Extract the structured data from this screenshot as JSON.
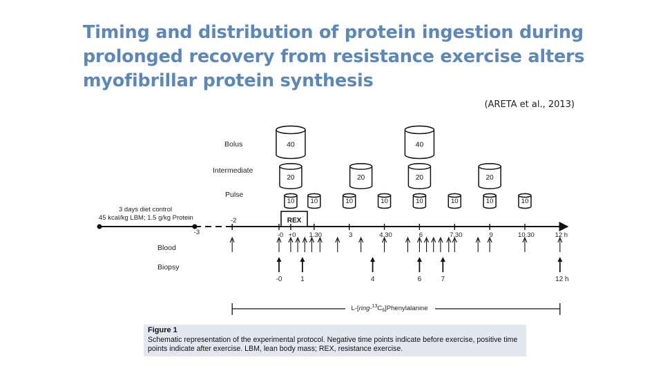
{
  "slide": {
    "title_lines": [
      "Timing and distribution of protein ingestion during",
      "prolonged recovery from resistance exercise alters",
      "myofibrillar protein synthesis"
    ],
    "citation": "(ARETA et al., 2013)"
  },
  "figure": {
    "row_labels": {
      "bolus": "Bolus",
      "intermediate": "Intermediate",
      "pulse": "Pulse",
      "blood": "Blood",
      "biopsy": "Biopsy"
    },
    "diet_control": {
      "line1": "3 days diet control",
      "line2": "45 kcal/kg LBM; 1.5 g/kg Protein"
    },
    "rex_label": "REX",
    "bolus_doses": [
      {
        "time": 0.5,
        "label": "40"
      },
      {
        "time": 6,
        "label": "40"
      }
    ],
    "intermediate_doses": [
      {
        "time": 0.5,
        "label": "20"
      },
      {
        "time": 3.5,
        "label": "20"
      },
      {
        "time": 6,
        "label": "20"
      },
      {
        "time": 9,
        "label": "20"
      }
    ],
    "pulse_doses": [
      {
        "time": 0.5,
        "label": "10"
      },
      {
        "time": 1.5,
        "label": "10"
      },
      {
        "time": 3,
        "label": "10"
      },
      {
        "time": 4.5,
        "label": "10"
      },
      {
        "time": 6,
        "label": "10"
      },
      {
        "time": 7.5,
        "label": "10"
      },
      {
        "time": 9,
        "label": "10"
      },
      {
        "time": 10.5,
        "label": "10"
      }
    ],
    "timeline_ticks": [
      {
        "time": -3,
        "label": "-3"
      },
      {
        "time": -2,
        "label": "-2"
      },
      {
        "time": 0,
        "label": "-0"
      },
      {
        "time": 0.5,
        "label": "+0"
      },
      {
        "time": 1.5,
        "label": "1.30"
      },
      {
        "time": 3,
        "label": "3"
      },
      {
        "time": 4.5,
        "label": "4.30"
      },
      {
        "time": 6,
        "label": "6"
      },
      {
        "time": 7.5,
        "label": "7.30"
      },
      {
        "time": 9,
        "label": "9"
      },
      {
        "time": 10.5,
        "label": "10.30"
      },
      {
        "time": 12,
        "label": "12 h"
      }
    ],
    "blood_samples": [
      -2,
      0,
      0.5,
      0.8,
      1.1,
      1.4,
      1.75,
      2.5,
      3.5,
      4.5,
      5.5,
      6,
      6.3,
      6.6,
      6.9,
      7.25,
      7.5,
      8.5,
      9,
      10.5,
      12
    ],
    "biopsy_samples": [
      {
        "time": 0,
        "label": "-0"
      },
      {
        "time": 1,
        "label": "1"
      },
      {
        "time": 4,
        "label": "4"
      },
      {
        "time": 6,
        "label": "6"
      },
      {
        "time": 7,
        "label": "7"
      },
      {
        "time": 12,
        "label": "12 h"
      }
    ],
    "tracer_label_prefix": "L-[",
    "tracer_label_italic": "ring",
    "tracer_label_mid": "-",
    "tracer_label_sup": "13",
    "tracer_label_c": "C",
    "tracer_label_sub": "6",
    "tracer_label_suffix": "]Phenylalanine",
    "tracer_range": [
      -2,
      12
    ],
    "caption_title": "Figure 1",
    "caption_text": "Schematic representation of the experimental protocol. Negative time points indicate before exercise, positive time points indicate after exercise. LBM, lean body mass; REX, resistance exercise."
  }
}
